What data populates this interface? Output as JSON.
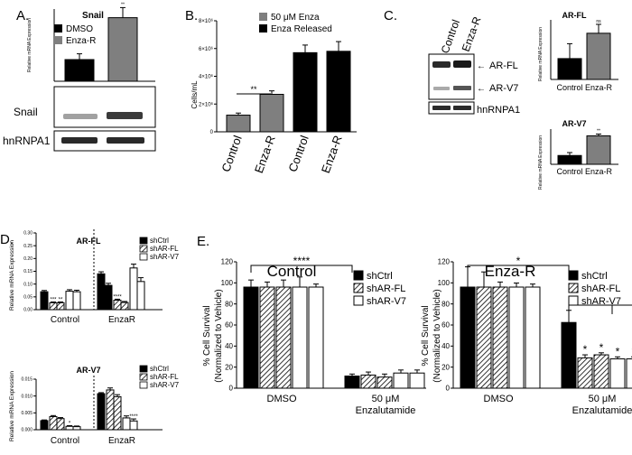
{
  "panel_labels": [
    "A.",
    "B.",
    "C.",
    "D.",
    "E."
  ],
  "colors": {
    "black": "#000000",
    "gray": "#7f7f7f",
    "white": "#ffffff",
    "blot_band": "#3a3a3a"
  },
  "chart_data": [
    {
      "id": "A",
      "type": "bar",
      "title": "Snail",
      "ylabel": "Relative mRNA Expression",
      "categories": [
        "DMSO",
        "Enza-R"
      ],
      "values": [
        0.015,
        0.044
      ],
      "errors": [
        0.004,
        0.007
      ],
      "ylim": [
        0,
        0.05
      ],
      "legend": [
        "DMSO",
        "Enza-R"
      ],
      "significance": [
        "",
        "**"
      ],
      "blot_labels": [
        "Snail",
        "hnRNPA1"
      ]
    },
    {
      "id": "B",
      "type": "bar",
      "ylabel": "Cells/mL",
      "categories": [
        "Control",
        "Enza-R",
        "Control",
        "Enza-R"
      ],
      "values": [
        1200000,
        2700000,
        5700000,
        5800000
      ],
      "errors": [
        150000,
        250000,
        550000,
        700000
      ],
      "ylim": [
        0,
        8000000
      ],
      "yticks": [
        "0",
        "2×10⁶",
        "4×10⁶",
        "6×10⁶",
        "8×10⁶"
      ],
      "legend": [
        "50 μM Enza",
        "Enza Released"
      ],
      "significance": "**"
    },
    {
      "id": "C",
      "blot_lanes": [
        "Control",
        "Enza-R"
      ],
      "blot_labels": [
        "AR-FL",
        "AR-V7",
        "hnRNPA1"
      ],
      "charts": [
        {
          "type": "bar",
          "title": "AR-FL",
          "ylabel": "Relative mRNA Expression",
          "categories": [
            "Control",
            "Enza-R"
          ],
          "values": [
            0.07,
            0.155
          ],
          "errors": [
            0.05,
            0.03
          ],
          "ylim": [
            0,
            0.2
          ],
          "significance": [
            "",
            "ns"
          ]
        },
        {
          "type": "bar",
          "title": "AR-V7",
          "ylabel": "Relative mRNA Expression",
          "categories": [
            "Control",
            "Enza-R"
          ],
          "values": [
            0.003,
            0.0097
          ],
          "errors": [
            0.001,
            0.0006
          ],
          "ylim": [
            0,
            0.012
          ],
          "significance": [
            "",
            "**"
          ]
        }
      ]
    },
    {
      "id": "D",
      "charts": [
        {
          "type": "bar",
          "title": "AR-FL",
          "ylabel": "Relative mRNA Expression",
          "yticks": [
            "0.00",
            "0.05",
            "0.10",
            "0.15",
            "0.20",
            "0.25",
            "0.30"
          ],
          "ylim": [
            0,
            0.3
          ],
          "groups": [
            {
              "label": "Control",
              "bars": [
                {
                  "values": [
                    0.07
                  ],
                  "error": 0.005
                },
                {
                  "values": [
                    0.027,
                    0.027
                  ],
                  "error": 0.003,
                  "sig": [
                    "***",
                    "**"
                  ]
                },
                {
                  "values": [
                    0.072,
                    0.07
                  ],
                  "error": 0.006
                }
              ]
            },
            {
              "label": "EnzaR",
              "bars": [
                {
                  "values": [
                    0.14,
                    0.095
                  ],
                  "error": 0.008
                },
                {
                  "values": [
                    0.037,
                    0.028
                  ],
                  "error": 0.004,
                  "sig": [
                    "****"
                  ]
                },
                {
                  "values": [
                    0.163,
                    0.11
                  ],
                  "error": 0.015
                }
              ]
            }
          ],
          "legend": [
            "shCtrl",
            "shAR-FL",
            "shAR-V7"
          ]
        },
        {
          "type": "bar",
          "title": "AR-V7",
          "ylabel": "Relative mRNA Expression",
          "yticks": [
            "0.000",
            "0.005",
            "0.010",
            "0.015"
          ],
          "ylim": [
            0,
            0.015
          ],
          "groups": [
            {
              "label": "Control",
              "bars": [
                {
                  "values": [
                    0.0027
                  ],
                  "error": 0.0002
                },
                {
                  "values": [
                    0.0039,
                    0.0033
                  ],
                  "error": 0.0003
                },
                {
                  "values": [
                    0.001,
                    0.0009
                  ],
                  "error": 0.0002,
                  "sig": [
                    "*",
                    ""
                  ]
                }
              ]
            },
            {
              "label": "EnzaR",
              "bars": [
                {
                  "values": [
                    0.0107
                  ],
                  "error": 0.0003
                },
                {
                  "values": [
                    0.0118,
                    0.0098
                  ],
                  "error": 0.0006
                },
                {
                  "values": [
                    0.0035,
                    0.0026
                  ],
                  "error": 0.0006,
                  "sig": [
                    "",
                    "****"
                  ]
                }
              ]
            }
          ],
          "legend": [
            "shCtrl",
            "shAR-FL",
            "shAR-V7"
          ]
        }
      ]
    },
    {
      "id": "E",
      "charts": [
        {
          "type": "bar",
          "title": "Control",
          "ylabel": "% Cell Survival (Normalized to Vehicle)",
          "yticks": [
            "0",
            "20",
            "40",
            "60",
            "80",
            "100",
            "120"
          ],
          "ylim": [
            0,
            125
          ],
          "groups": [
            {
              "label": "DMSO",
              "values": [
                100,
                100,
                100,
                100,
                100
              ],
              "errors": [
                7,
                5,
                7,
                10,
                3
              ]
            },
            {
              "label": "50 μM Enzalutamide",
              "values": [
                12,
                13,
                11,
                15,
                15
              ],
              "errors": [
                2,
                3,
                3,
                3,
                3
              ]
            }
          ],
          "significance": "****",
          "legend": [
            "shCtrl",
            "shAR-FL",
            "shAR-V7"
          ]
        },
        {
          "type": "bar",
          "title": "Enza-R",
          "ylabel": "% Cell Survival (Normalized to Vehicle)",
          "yticks": [
            "0",
            "20",
            "40",
            "60",
            "80",
            "100",
            "120"
          ],
          "ylim": [
            0,
            125
          ],
          "groups": [
            {
              "label": "DMSO",
              "values": [
                100,
                100,
                100,
                100,
                100
              ],
              "errors": [
                20,
                15,
                5,
                4,
                3
              ]
            },
            {
              "label": "50 μM Enzalutamide",
              "values": [
                65,
                30,
                33,
                29,
                29
              ],
              "errors": [
                12,
                3,
                2,
                2,
                2
              ],
              "sig": [
                "",
                "*",
                "*",
                "*",
                "*"
              ]
            }
          ],
          "significance": "*",
          "legend": [
            "shCtrl",
            "shAR-FL",
            "shAR-V7"
          ]
        }
      ]
    }
  ]
}
